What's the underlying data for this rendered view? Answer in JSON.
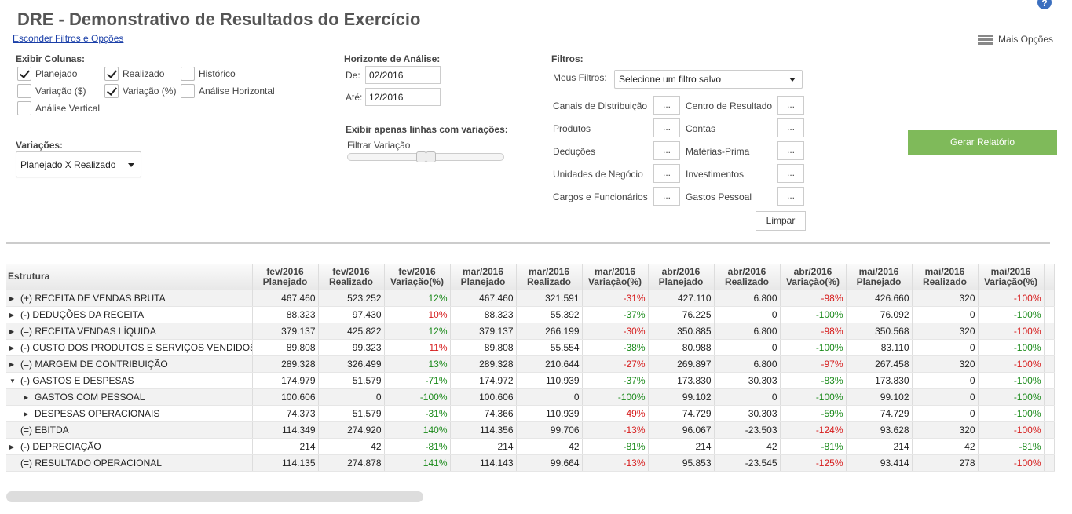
{
  "page": {
    "title": "DRE - Demonstrativo de Resultados do Exercício",
    "toggle_filters": "Esconder Filtros e Opções",
    "more_options": "Mais Opções",
    "help": "?"
  },
  "columns_section": {
    "label": "Exibir Colunas:",
    "options": [
      {
        "label": "Planejado",
        "checked": true
      },
      {
        "label": "Realizado",
        "checked": true
      },
      {
        "label": "Histórico",
        "checked": false
      },
      {
        "label": "Variação ($)",
        "checked": false
      },
      {
        "label": "Variação (%)",
        "checked": true
      },
      {
        "label": "Análise Horizontal",
        "checked": false
      },
      {
        "label": "Análise Vertical",
        "checked": false
      }
    ]
  },
  "variations": {
    "label": "Variações:",
    "selected": "Planejado X Realizado"
  },
  "horizon": {
    "label": "Horizonte de Análise:",
    "from_label": "De:",
    "from_value": "02/2016",
    "to_label": "Até:",
    "to_value": "12/2016"
  },
  "variation_filter": {
    "label": "Exibir apenas linhas com variações:",
    "slider_label": "Filtrar Variação"
  },
  "filters": {
    "label": "Filtros:",
    "my_filters_label": "Meus Filtros:",
    "my_filters_selected": "Selecione um filtro salvo",
    "button_text": "...",
    "left": [
      "Canais de Distribuição",
      "Produtos",
      "Deduções",
      "Unidades de Negócio",
      "Cargos e Funcionários"
    ],
    "right": [
      "Centro de Resultado",
      "Contas",
      "Matérias-Prima",
      "Investimentos",
      "Gastos Pessoal"
    ],
    "clear": "Limpar"
  },
  "generate_report": "Gerar Relatório",
  "table": {
    "structure_header": "Estrutura",
    "headers": [
      [
        "fev/2016",
        "Planejado"
      ],
      [
        "fev/2016",
        "Realizado"
      ],
      [
        "fev/2016",
        "Variação(%)"
      ],
      [
        "mar/2016",
        "Planejado"
      ],
      [
        "mar/2016",
        "Realizado"
      ],
      [
        "mar/2016",
        "Variação(%)"
      ],
      [
        "abr/2016",
        "Planejado"
      ],
      [
        "abr/2016",
        "Realizado"
      ],
      [
        "abr/2016",
        "Variação(%)"
      ],
      [
        "mai/2016",
        "Planejado"
      ],
      [
        "mai/2016",
        "Realizado"
      ],
      [
        "mai/2016",
        "Variação(%)"
      ]
    ],
    "rows": [
      {
        "label": "(+) RECEITA DE VENDAS BRUTA",
        "expander": "collapsed",
        "level": 0,
        "values": [
          "467.460",
          "523.252",
          "12%",
          "467.460",
          "321.591",
          "-31%",
          "427.110",
          "6.800",
          "-98%",
          "426.660",
          "320",
          "-100%"
        ],
        "var_colors": [
          "pos",
          "neg",
          "neg",
          "neg"
        ]
      },
      {
        "label": "(-) DEDUÇÕES DA RECEITA",
        "expander": "collapsed",
        "level": 0,
        "values": [
          "88.323",
          "97.430",
          "10%",
          "88.323",
          "55.392",
          "-37%",
          "76.225",
          "0",
          "-100%",
          "76.092",
          "0",
          "-100%"
        ],
        "var_colors": [
          "neg",
          "pos",
          "pos",
          "pos"
        ]
      },
      {
        "label": "(=) RECEITA VENDAS LÍQUIDA",
        "expander": "collapsed",
        "level": 0,
        "values": [
          "379.137",
          "425.822",
          "12%",
          "379.137",
          "266.199",
          "-30%",
          "350.885",
          "6.800",
          "-98%",
          "350.568",
          "320",
          "-100%"
        ],
        "var_colors": [
          "pos",
          "neg",
          "neg",
          "neg"
        ]
      },
      {
        "label": "(-) CUSTO DOS PRODUTOS E SERVIÇOS VENDIDOS",
        "expander": "collapsed",
        "level": 0,
        "values": [
          "89.808",
          "99.323",
          "11%",
          "89.808",
          "55.554",
          "-38%",
          "80.988",
          "0",
          "-100%",
          "83.110",
          "0",
          "-100%"
        ],
        "var_colors": [
          "neg",
          "pos",
          "pos",
          "pos"
        ]
      },
      {
        "label": "(=) MARGEM DE CONTRIBUIÇÃO",
        "expander": "collapsed",
        "level": 0,
        "values": [
          "289.328",
          "326.499",
          "13%",
          "289.328",
          "210.644",
          "-27%",
          "269.897",
          "6.800",
          "-97%",
          "267.458",
          "320",
          "-100%"
        ],
        "var_colors": [
          "pos",
          "neg",
          "neg",
          "neg"
        ]
      },
      {
        "label": "(-) GASTOS E DESPESAS",
        "expander": "expanded",
        "level": 0,
        "values": [
          "174.979",
          "51.579",
          "-71%",
          "174.972",
          "110.939",
          "-37%",
          "173.830",
          "30.303",
          "-83%",
          "173.830",
          "0",
          "-100%"
        ],
        "var_colors": [
          "pos",
          "pos",
          "pos",
          "pos"
        ]
      },
      {
        "label": "GASTOS COM PESSOAL",
        "expander": "collapsed",
        "level": 1,
        "values": [
          "100.606",
          "0",
          "-100%",
          "100.606",
          "0",
          "-100%",
          "99.102",
          "0",
          "-100%",
          "99.102",
          "0",
          "-100%"
        ],
        "var_colors": [
          "pos",
          "pos",
          "pos",
          "pos"
        ]
      },
      {
        "label": "DESPESAS OPERACIONAIS",
        "expander": "collapsed",
        "level": 1,
        "values": [
          "74.373",
          "51.579",
          "-31%",
          "74.366",
          "110.939",
          "49%",
          "74.729",
          "30.303",
          "-59%",
          "74.729",
          "0",
          "-100%"
        ],
        "var_colors": [
          "pos",
          "neg",
          "pos",
          "pos"
        ]
      },
      {
        "label": "(=) EBITDA",
        "expander": "none",
        "level": 0,
        "values": [
          "114.349",
          "274.920",
          "140%",
          "114.356",
          "99.706",
          "-13%",
          "96.067",
          "-23.503",
          "-124%",
          "93.628",
          "320",
          "-100%"
        ],
        "var_colors": [
          "pos",
          "neg",
          "neg",
          "neg"
        ]
      },
      {
        "label": "(-) DEPRECIAÇÃO",
        "expander": "collapsed",
        "level": 0,
        "values": [
          "214",
          "42",
          "-81%",
          "214",
          "42",
          "-81%",
          "214",
          "42",
          "-81%",
          "214",
          "42",
          "-81%"
        ],
        "var_colors": [
          "pos",
          "pos",
          "pos",
          "pos"
        ]
      },
      {
        "label": "(=) RESULTADO OPERACIONAL",
        "expander": "none",
        "level": 0,
        "values": [
          "114.135",
          "274.878",
          "141%",
          "114.143",
          "99.664",
          "-13%",
          "95.853",
          "-23.545",
          "-125%",
          "93.414",
          "278",
          "-100%"
        ],
        "var_colors": [
          "pos",
          "neg",
          "neg",
          "neg"
        ]
      }
    ]
  },
  "colors": {
    "positive": "#1a8a1a",
    "negative": "#d61c1c",
    "generate_button": "#7fba5a",
    "link": "#1a3fa8"
  }
}
